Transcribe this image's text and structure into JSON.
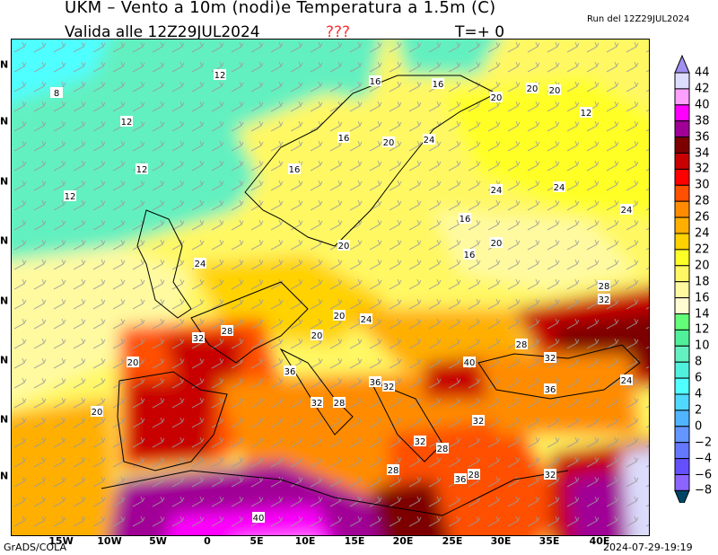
{
  "header": {
    "title": "UKM – Vento a 10m (nodi)e Temperatura a 1.5m (C)",
    "valid": "Valida alle 12Z29JUL2024",
    "warning": "???",
    "timestep": "T=+ 0",
    "run": "Run del 12Z29JUL2024"
  },
  "footer": {
    "credit": "GrADS/COLA",
    "timestamp": "2024-07-29-19:19"
  },
  "axes": {
    "lon_labels": [
      "15W",
      "10W",
      "5W",
      "0",
      "5E",
      "10E",
      "15E",
      "20E",
      "25E",
      "30E",
      "35E",
      "40E"
    ],
    "lat_labels": [
      "N",
      "N",
      "N",
      "N",
      "N",
      "N",
      "N",
      "N"
    ]
  },
  "colorbar": {
    "labels": [
      "44",
      "42",
      "40",
      "38",
      "36",
      "34",
      "32",
      "30",
      "28",
      "26",
      "24",
      "22",
      "20",
      "18",
      "16",
      "14",
      "12",
      "10",
      "8",
      "6",
      "4",
      "2",
      "0",
      "−2",
      "−4",
      "−6",
      "−8"
    ],
    "colors": [
      "#dcdcfc",
      "#ffa0ff",
      "#ff00ff",
      "#a00096",
      "#7d0000",
      "#c80000",
      "#ff0000",
      "#ff5000",
      "#ff8c00",
      "#ffaf00",
      "#ffd200",
      "#ffff28",
      "#fff864",
      "#fffaa0",
      "#fffcd2",
      "#64ff78",
      "#50f09a",
      "#64f0c0",
      "#50f0dc",
      "#50ffff",
      "#50d8ff",
      "#50b4ff",
      "#6496ff",
      "#6478ff",
      "#6450ff",
      "#8c64ff"
    ],
    "top_arrow_color": "#a090f0",
    "bottom_arrow_color": "#004664"
  },
  "map": {
    "contour_labels": [
      "12",
      "12",
      "12",
      "16",
      "16",
      "20",
      "20",
      "20",
      "12",
      "16",
      "16",
      "20",
      "24",
      "24",
      "16",
      "16",
      "20",
      "20",
      "24",
      "24",
      "28",
      "32",
      "28",
      "32",
      "20",
      "20",
      "24",
      "28",
      "32",
      "36",
      "32",
      "28",
      "32",
      "36",
      "40",
      "36",
      "32",
      "28",
      "24",
      "28",
      "32",
      "36",
      "28",
      "32",
      "20",
      "24",
      "40",
      "12",
      "8",
      "20"
    ],
    "wind_barb_color": "#9a9a9a"
  }
}
